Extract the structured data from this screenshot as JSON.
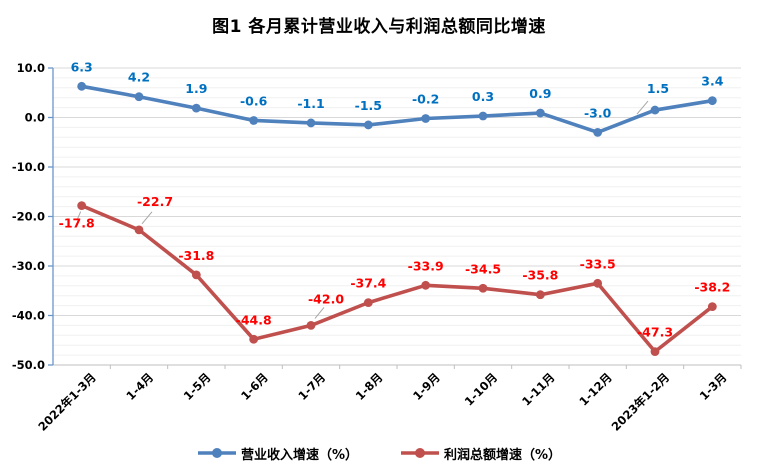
{
  "title": "图1 各月累计营业收入与利润总额同比增速",
  "chart_data": {
    "type": "line",
    "title": "图1 各月累计营业收入与利润总额同比增速",
    "categories": [
      "2022年1-3月",
      "1-4月",
      "1-5月",
      "1-6月",
      "1-7月",
      "1-8月",
      "1-9月",
      "1-10月",
      "1-11月",
      "1-12月",
      "2023年1-2月",
      "1-3月"
    ],
    "series": [
      {
        "name": "营业收入增速（%）",
        "color": "#4F81BD",
        "label_color": "#0070C0",
        "values": [
          6.3,
          4.2,
          1.9,
          -0.6,
          -1.1,
          -1.5,
          -0.2,
          0.3,
          0.9,
          -3.0,
          1.5,
          3.4
        ]
      },
      {
        "name": "利润总额增速（%）",
        "color": "#C0504D",
        "label_color": "#FF0000",
        "values": [
          -17.8,
          -22.7,
          -31.8,
          -44.8,
          -42.0,
          -37.4,
          -33.9,
          -34.5,
          -35.8,
          -33.5,
          -47.3,
          -38.2
        ]
      }
    ],
    "xlabel": "",
    "ylabel": "",
    "ylim": [
      -50,
      10
    ],
    "ytick_step": 10,
    "yminor_step": 2,
    "ytick_labels": [
      "10.0",
      "0.0",
      "-10.0",
      "-20.0",
      "-30.0",
      "-40.0",
      "-50.0"
    ],
    "grid": "on",
    "legend_position": "bottom",
    "data_label_decimals": 1
  }
}
